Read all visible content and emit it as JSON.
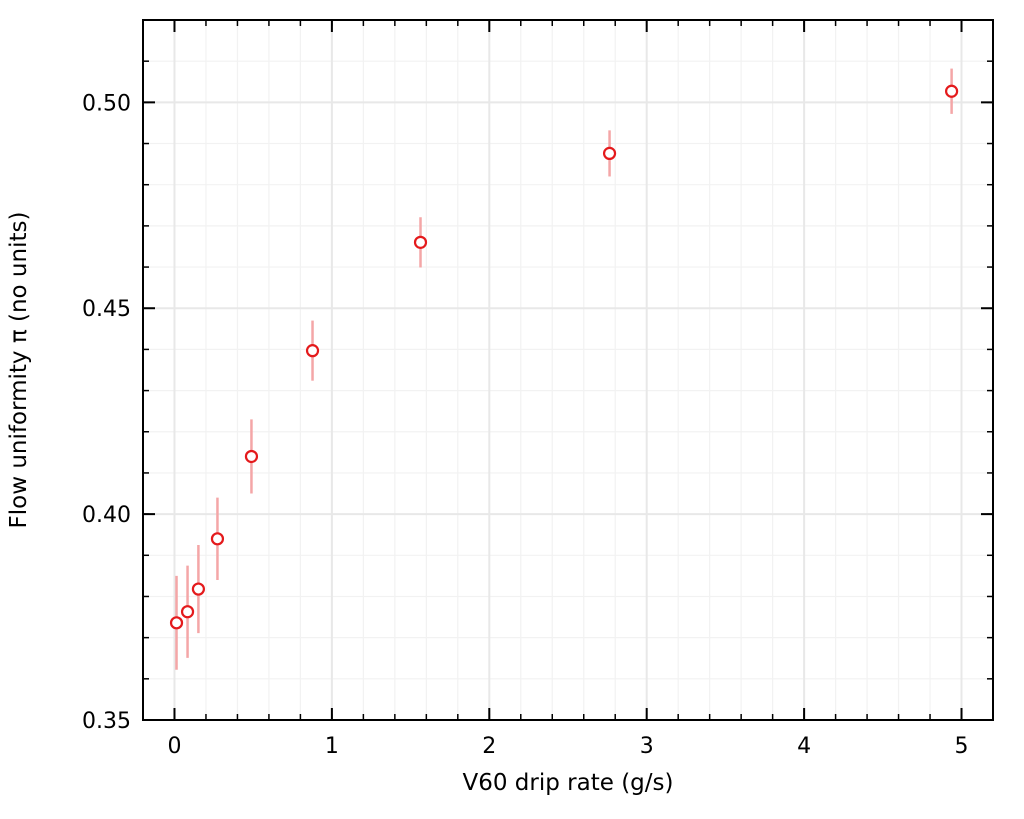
{
  "chart_data": {
    "type": "scatter",
    "title": "",
    "xlabel": "V60 drip rate (g/s)",
    "ylabel": "Flow uniformity π (no units)",
    "xlim": [
      -0.2,
      5.2
    ],
    "ylim": [
      0.35,
      0.52
    ],
    "xticks": [
      0,
      1,
      2,
      3,
      4,
      5
    ],
    "xtick_labels": [
      "0",
      "1",
      "2",
      "3",
      "4",
      "5"
    ],
    "yticks": [
      0.35,
      0.4,
      0.45,
      0.5
    ],
    "ytick_labels": [
      "0.35",
      "0.40",
      "0.45",
      "0.50"
    ],
    "x_minor_step": 0.2,
    "y_minor_step": 0.01,
    "grid": true,
    "marker_color": "#e41a1c",
    "errorbar_color": "#f4a6a7",
    "series": [
      {
        "name": "measurements",
        "x": [
          0.013,
          0.083,
          0.152,
          0.273,
          0.489,
          0.877,
          1.563,
          2.764,
          4.937
        ],
        "y": [
          0.3736,
          0.3763,
          0.3818,
          0.394,
          0.414,
          0.4397,
          0.466,
          0.4876,
          0.5027
        ],
        "yerr": [
          0.0114,
          0.0112,
          0.0107,
          0.01,
          0.009,
          0.0073,
          0.0061,
          0.0056,
          0.0055
        ]
      }
    ]
  }
}
